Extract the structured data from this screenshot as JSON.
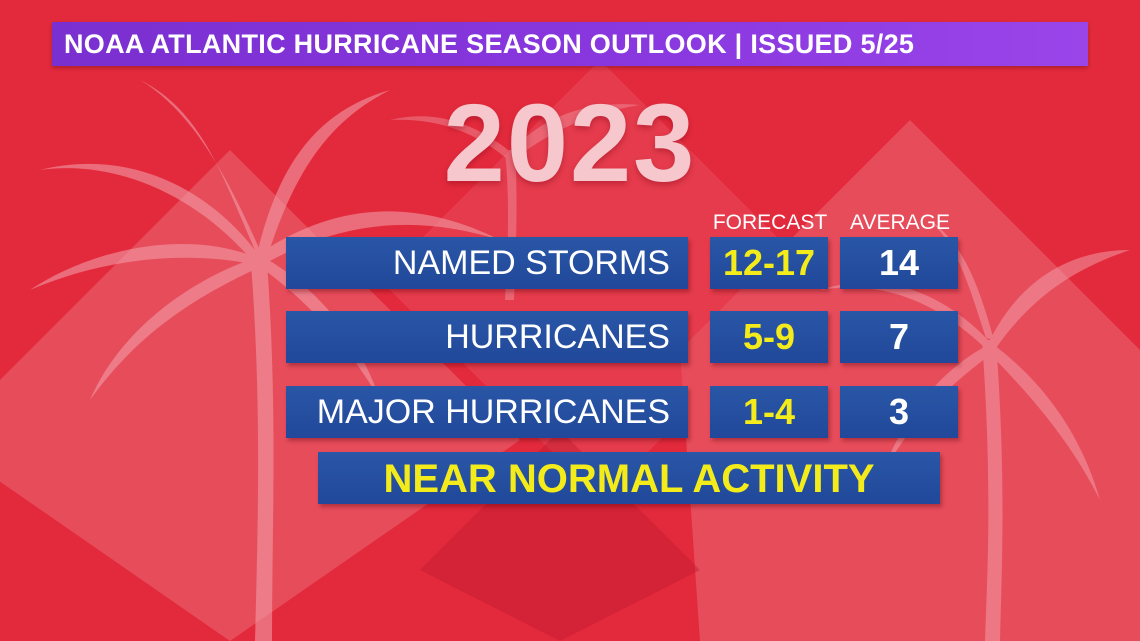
{
  "header": {
    "title": "NOAA ATLANTIC HURRICANE SEASON OUTLOOK | ISSUED 5/25"
  },
  "year": "2023",
  "columns": {
    "forecast": "FORECAST",
    "average": "AVERAGE"
  },
  "rows": [
    {
      "label": "NAMED STORMS",
      "forecast": "12-17",
      "average": "14"
    },
    {
      "label": "HURRICANES",
      "forecast": "5-9",
      "average": "7"
    },
    {
      "label": "MAJOR HURRICANES",
      "forecast": "1-4",
      "average": "3"
    }
  ],
  "summary": "NEAR NORMAL ACTIVITY",
  "colors": {
    "background": "#e32a3c",
    "header_bar": "#8a38e0",
    "table_bar": "#2451a0",
    "forecast_text": "#f4ec1a",
    "year_text": "#f6c7cc"
  }
}
